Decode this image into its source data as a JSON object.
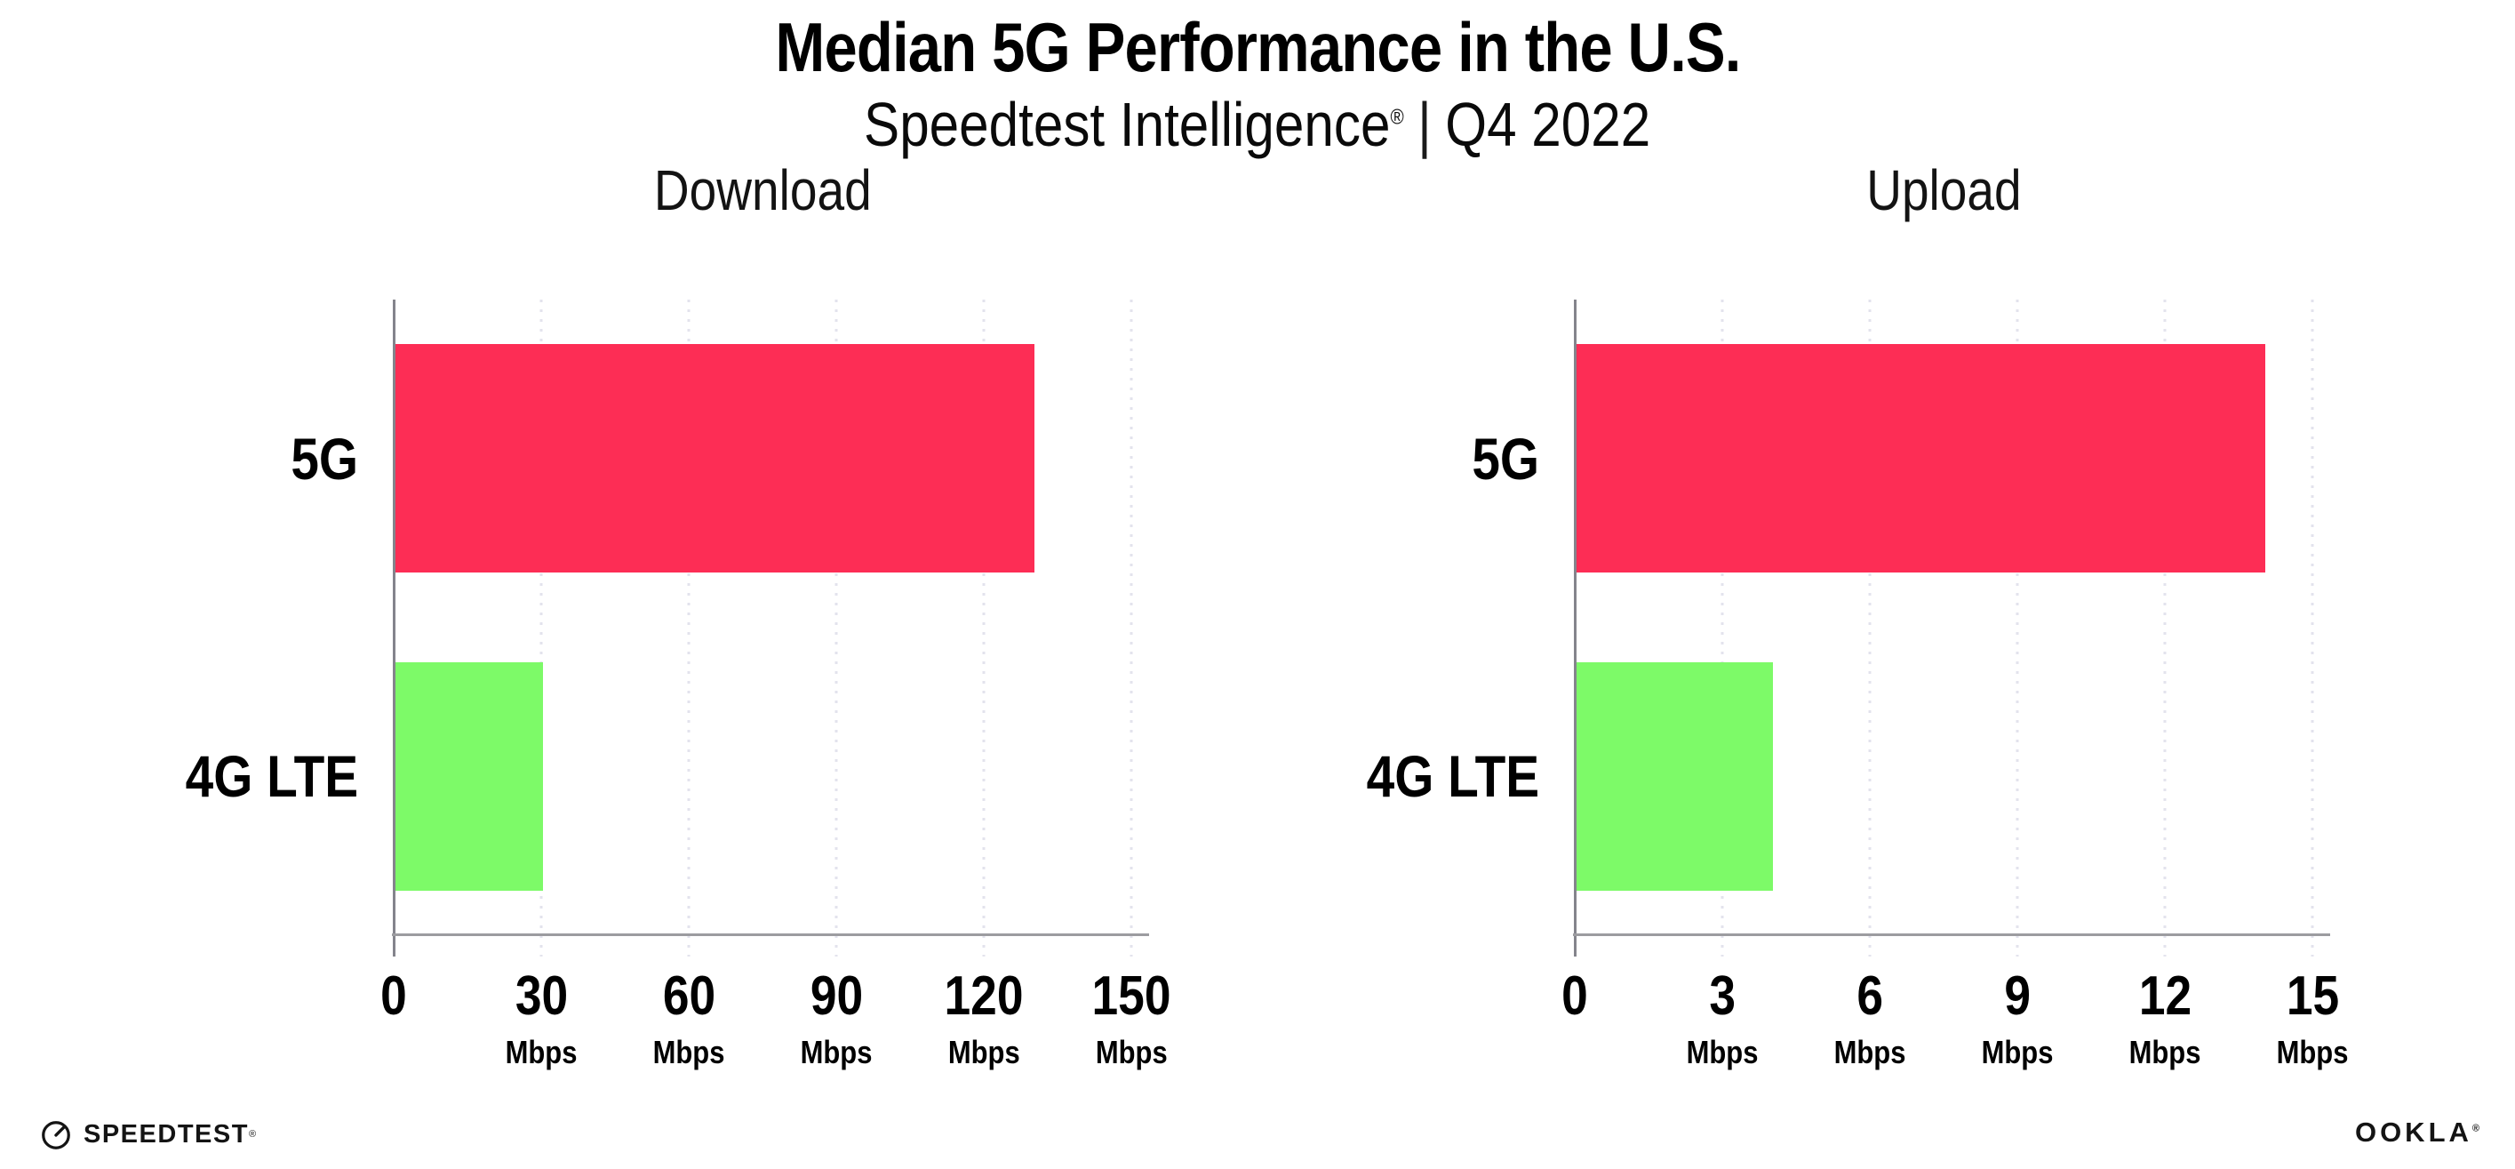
{
  "title": "Median 5G Performance in the U.S.",
  "subtitle": {
    "brand": "Speedtest Intelligence",
    "registered_mark": "®",
    "separator": "|",
    "period": "Q4 2022"
  },
  "colors": {
    "bar_5g": "#FD2D55",
    "bar_4g_lte": "#7DFA68",
    "x_axis": "#9C9CA0",
    "y_axis": "#84848C",
    "grid_dots": "#E3E3ED",
    "text": "#000000"
  },
  "chart_data": [
    {
      "type": "bar",
      "orientation": "horizontal",
      "title": "Download",
      "categories": [
        "5G",
        "4G LTE"
      ],
      "values": [
        130,
        30
      ],
      "unit": "Mbps",
      "xlim": [
        0,
        150
      ],
      "xticks": [
        0,
        30,
        60,
        90,
        120,
        150
      ],
      "grid": "dotted-vertical",
      "legend": "none",
      "bar_colors": [
        "#FD2D55",
        "#7DFA68"
      ]
    },
    {
      "type": "bar",
      "orientation": "horizontal",
      "title": "Upload",
      "categories": [
        "5G",
        "4G LTE"
      ],
      "values": [
        14,
        4
      ],
      "unit": "Mbps",
      "xlim": [
        0,
        15
      ],
      "xticks": [
        0,
        3,
        6,
        9,
        12,
        15
      ],
      "grid": "dotted-vertical",
      "legend": "none",
      "bar_colors": [
        "#FD2D55",
        "#7DFA68"
      ]
    }
  ],
  "footer": {
    "speedtest_logo_text": "SPEEDTEST",
    "speedtest_mark": "®",
    "speedtest_icon": "speedtest-gauge-icon",
    "ookla_logo_text": "OOKLA",
    "ookla_mark": "®"
  }
}
